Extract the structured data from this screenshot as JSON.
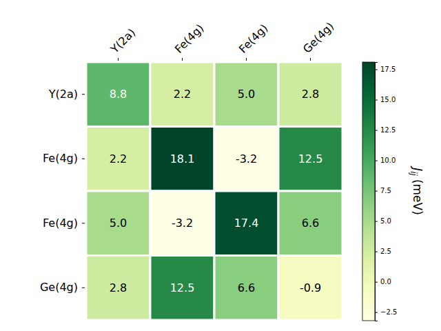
{
  "chart_data": {
    "type": "heatmap",
    "x": [
      "Y(2a)",
      "Fe(4g)",
      "Fe(4g)",
      "Ge(4g)"
    ],
    "y": [
      "Y(2a)",
      "Fe(4g)",
      "Fe(4g)",
      "Ge(4g)"
    ],
    "cells": [
      [
        8.8,
        2.2,
        5.0,
        2.8
      ],
      [
        2.2,
        18.1,
        -3.2,
        12.5
      ],
      [
        5.0,
        -3.2,
        17.4,
        6.6
      ],
      [
        2.8,
        12.5,
        6.6,
        -0.9
      ]
    ],
    "value_labels": [
      [
        "8.8",
        "2.2",
        "5.0",
        "2.8"
      ],
      [
        "2.2",
        "18.1",
        "-3.2",
        "12.5"
      ],
      [
        "5.0",
        "-3.2",
        "17.4",
        "6.6"
      ],
      [
        "2.8",
        "12.5",
        "6.6",
        "-0.9"
      ]
    ],
    "data_labels": true,
    "colorbar": {
      "range": [
        -3.2,
        18.1
      ],
      "ticks": [
        {
          "value": -2.5,
          "label": "−2.5"
        },
        {
          "value": 0,
          "label": "0.0"
        },
        {
          "value": 2.5,
          "label": "2.5"
        },
        {
          "value": 5,
          "label": "5.0"
        },
        {
          "value": 7.5,
          "label": "7.5"
        },
        {
          "value": 10,
          "label": "10.0"
        },
        {
          "value": 12.5,
          "label": "12.5"
        },
        {
          "value": 15,
          "label": "15.0"
        },
        {
          "value": 17.5,
          "label": "17.5"
        }
      ],
      "label": {
        "symbol": "J",
        "subscript": "ij",
        "unit": "(meV)"
      }
    }
  }
}
